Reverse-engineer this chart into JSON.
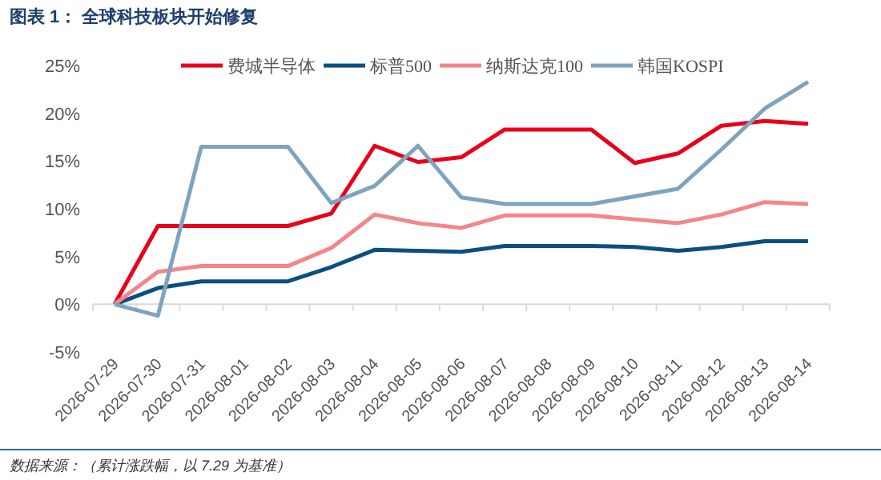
{
  "chart_data": {
    "type": "line",
    "title": "图表 1：  全球科技板块开始修复",
    "categories": [
      "2026-07-29",
      "2026-07-30",
      "2026-07-31",
      "2026-08-01",
      "2026-08-02",
      "2026-08-03",
      "2026-08-04",
      "2026-08-05",
      "2026-08-06",
      "2026-08-07",
      "2026-08-08",
      "2026-08-09",
      "2026-08-10",
      "2026-08-11",
      "2026-08-12",
      "2026-08-13",
      "2026-08-14"
    ],
    "series": [
      {
        "name": "费城半导体",
        "color": "#e8001c",
        "values": [
          0,
          8.2,
          8.2,
          8.2,
          8.2,
          9.5,
          16.6,
          14.9,
          15.4,
          18.3,
          18.3,
          18.3,
          14.8,
          15.8,
          18.7,
          19.2,
          18.9
        ]
      },
      {
        "name": "标普500",
        "color": "#0b4f82",
        "values": [
          0,
          1.7,
          2.4,
          2.4,
          2.4,
          3.9,
          5.7,
          5.6,
          5.5,
          6.1,
          6.1,
          6.1,
          6.0,
          5.6,
          6.0,
          6.6,
          6.6
        ]
      },
      {
        "name": "纳斯达克100",
        "color": "#f4868b",
        "values": [
          0,
          3.4,
          4.0,
          4.0,
          4.0,
          5.9,
          9.4,
          8.5,
          8.0,
          9.3,
          9.3,
          9.3,
          8.9,
          8.5,
          9.4,
          10.7,
          10.5
        ]
      },
      {
        "name": "韩国KOSPI",
        "color": "#7fa3bf",
        "values": [
          0,
          -1.2,
          16.5,
          16.5,
          16.5,
          10.6,
          12.4,
          16.6,
          11.2,
          10.5,
          10.5,
          10.5,
          11.3,
          12.1,
          16.2,
          20.5,
          23.3
        ]
      }
    ],
    "ylim": [
      -5,
      25
    ],
    "yticks": [
      {
        "value": -5,
        "label": "-5%"
      },
      {
        "value": 0,
        "label": "0%"
      },
      {
        "value": 5,
        "label": "5%"
      },
      {
        "value": 10,
        "label": "10%"
      },
      {
        "value": 15,
        "label": "15%"
      },
      {
        "value": 20,
        "label": "20%"
      },
      {
        "value": 25,
        "label": "25%"
      }
    ],
    "legend": "top",
    "marker": "none",
    "line_style": "solid",
    "annotations": [
      "数据来源：（累计涨跌幅，以 7.29 为基准）"
    ]
  }
}
